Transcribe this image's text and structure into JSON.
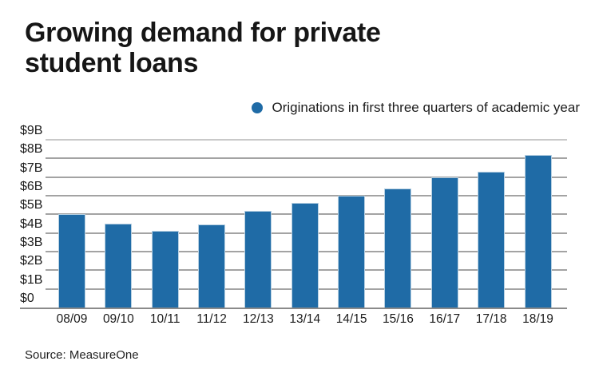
{
  "page": {
    "title": "Growing demand for private student loans",
    "source": "Source: MeasureOne"
  },
  "legend": {
    "label": "Originations in first three quarters of academic year"
  },
  "chart_data": {
    "type": "bar",
    "title": "Growing demand for private student loans",
    "series_name": "Originations in first three quarters of academic year",
    "categories": [
      "08/09",
      "09/10",
      "10/11",
      "11/12",
      "12/13",
      "13/14",
      "14/15",
      "15/16",
      "16/17",
      "17/18",
      "18/19"
    ],
    "values": [
      5.0,
      4.5,
      4.1,
      4.45,
      5.2,
      5.6,
      6.0,
      6.4,
      7.0,
      7.3,
      8.2
    ],
    "unit": "billions of dollars",
    "ylim": [
      0,
      9
    ],
    "ytick_interval": 1,
    "ytick_labels": [
      "$0",
      "$1B",
      "$2B",
      "$3B",
      "$4B",
      "$5B",
      "$6B",
      "$7B",
      "$8B",
      "$9B"
    ],
    "grid": true,
    "legend_position": "top-right",
    "source": "Source: MeasureOne"
  },
  "colors": {
    "bar": "#1f6ba6",
    "bar_edge": "#b7d0e2",
    "grid": "#a3a3a3",
    "grid_top": "#c9c9c9",
    "axis": "#8a8a8a",
    "text": "#1a1a1a"
  }
}
